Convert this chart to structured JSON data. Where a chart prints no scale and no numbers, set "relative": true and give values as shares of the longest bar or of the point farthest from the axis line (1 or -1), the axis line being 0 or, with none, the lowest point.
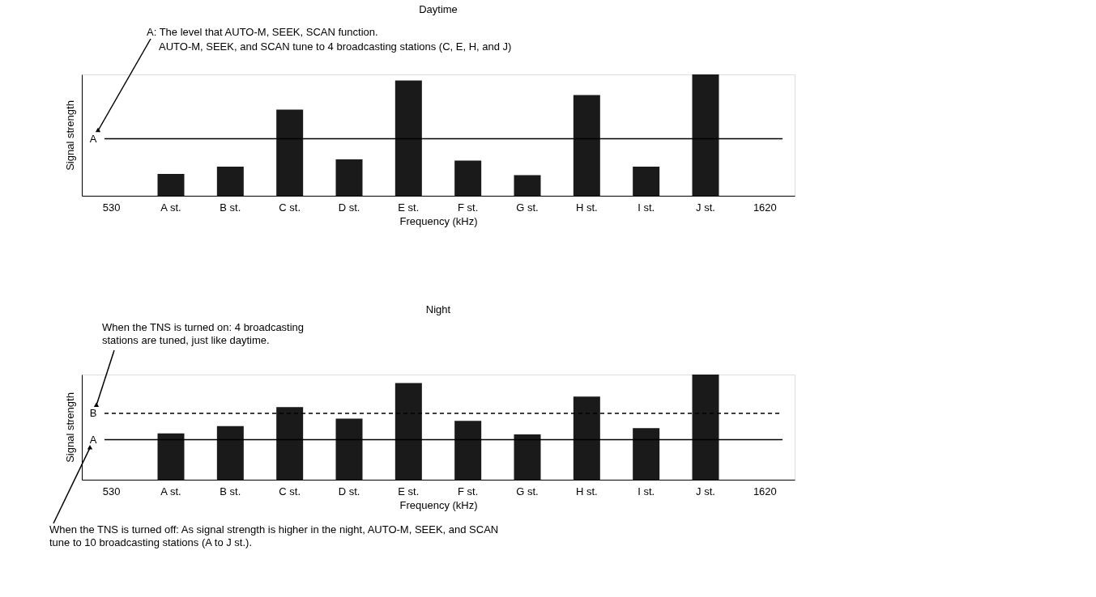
{
  "chart_data": [
    {
      "type": "bar",
      "title": "Daytime",
      "xlabel": "Frequency (kHz)",
      "ylabel": "Signal strength",
      "relative": true,
      "color": "#1a1a1a",
      "categories": [
        "530",
        "A st.",
        "B st.",
        "C st.",
        "D st.",
        "E st.",
        "F st.",
        "G st.",
        "H st.",
        "I st.",
        "J st.",
        "1620"
      ],
      "values": [
        null,
        0.18,
        0.24,
        0.71,
        0.3,
        0.95,
        0.29,
        0.17,
        0.83,
        0.24,
        1.0,
        null
      ],
      "ref_lines": [
        {
          "axis": "y",
          "value": 0.47,
          "label": "A",
          "line_style": "solid"
        }
      ],
      "annotations": [
        "A: The level that AUTO-M, SEEK, SCAN function.",
        "AUTO-M, SEEK, and SCAN tune to 4 broadcasting stations (C, E, H, and J)"
      ],
      "grid": false
    },
    {
      "type": "bar",
      "title": "Night",
      "xlabel": "Frequency (kHz)",
      "ylabel": "Signal strength",
      "relative": true,
      "color": "#1a1a1a",
      "categories": [
        "530",
        "A st.",
        "B st.",
        "C st.",
        "D st.",
        "E st.",
        "F st.",
        "G st.",
        "H st.",
        "I st.",
        "J st.",
        "1620"
      ],
      "values": [
        null,
        0.44,
        0.51,
        0.69,
        0.58,
        0.92,
        0.56,
        0.43,
        0.79,
        0.49,
        1.0,
        null
      ],
      "ref_lines": [
        {
          "axis": "y",
          "value": 0.63,
          "label": "B",
          "line_style": "dashed"
        },
        {
          "axis": "y",
          "value": 0.38,
          "label": "A",
          "line_style": "solid"
        }
      ],
      "annotations": [
        "When the TNS is turned on: 4 broadcasting stations are tuned, just like daytime.",
        "When the TNS is turned off: As signal strength is higher in the night, AUTO-M, SEEK, and SCAN tune to 10 broadcasting stations (A to J st.)."
      ],
      "grid": false
    }
  ]
}
